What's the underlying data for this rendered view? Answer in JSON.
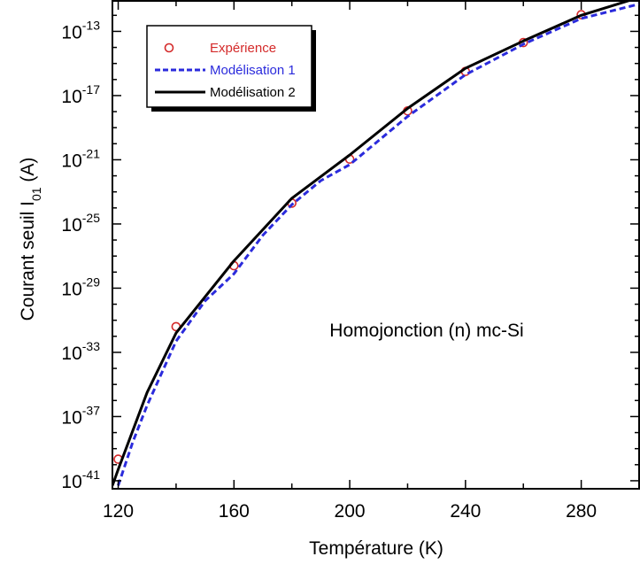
{
  "chart_data": {
    "type": "line",
    "title": "",
    "annotation": "Homojonction (n) mc-Si",
    "xlabel": "Température (K)",
    "ylabel": {
      "main": "Courant seuil I",
      "sub": "01",
      "unit": " (A)"
    },
    "x_scale": "linear",
    "y_scale": "log",
    "xlim": [
      118,
      300
    ],
    "ylim_log10": [
      -41.5,
      -11.1
    ],
    "xticks": [
      120,
      160,
      200,
      240,
      280
    ],
    "yticks": [
      {
        "base": "10",
        "exp": "-13"
      },
      {
        "base": "10",
        "exp": "-17"
      },
      {
        "base": "10",
        "exp": "-21"
      },
      {
        "base": "10",
        "exp": "-25"
      },
      {
        "base": "10",
        "exp": "-29"
      },
      {
        "base": "10",
        "exp": "-33"
      },
      {
        "base": "10",
        "exp": "-37"
      },
      {
        "base": "10",
        "exp": "-41"
      }
    ],
    "grid": false,
    "legend_position": "top-left",
    "series": [
      {
        "name": "Expérience",
        "style": "markers",
        "marker": "circle-open",
        "color": "#d42a2a",
        "points": [
          [
            120,
            2.2e-40
          ],
          [
            140,
            4e-32
          ],
          [
            160,
            2.5e-28
          ],
          [
            180,
            2e-24
          ],
          [
            200,
            1.1e-21
          ],
          [
            220,
            1.1e-18
          ],
          [
            240,
            3.2e-16
          ],
          [
            260,
            2e-14
          ],
          [
            280,
            1.1e-12
          ]
        ]
      },
      {
        "name": "Modélisation 1",
        "style": "dashed",
        "color": "#2b2bdc",
        "points": [
          [
            120,
            5e-42
          ],
          [
            125,
            2.5e-39
          ],
          [
            130,
            5e-37
          ],
          [
            140,
            5e-33
          ],
          [
            150,
            1.6e-30
          ],
          [
            160,
            7.9e-29
          ],
          [
            170,
            2e-26
          ],
          [
            180,
            1.6e-24
          ],
          [
            190,
            5e-23
          ],
          [
            200,
            5e-22
          ],
          [
            220,
            5e-19
          ],
          [
            240,
            2e-16
          ],
          [
            260,
            1.6e-14
          ],
          [
            280,
            6.3e-13
          ],
          [
            300,
            5e-12
          ]
        ]
      },
      {
        "name": "Modélisation 2",
        "style": "solid",
        "color": "#000000",
        "points": [
          [
            118,
            5e-42
          ],
          [
            120,
            5e-41
          ],
          [
            130,
            3.2e-36
          ],
          [
            140,
            1.6e-32
          ],
          [
            160,
            5e-28
          ],
          [
            180,
            4e-24
          ],
          [
            200,
            2e-21
          ],
          [
            220,
            1.6e-18
          ],
          [
            240,
            5e-16
          ],
          [
            260,
            2.5e-14
          ],
          [
            280,
            1e-12
          ],
          [
            300,
            1.3e-11
          ]
        ]
      }
    ]
  }
}
